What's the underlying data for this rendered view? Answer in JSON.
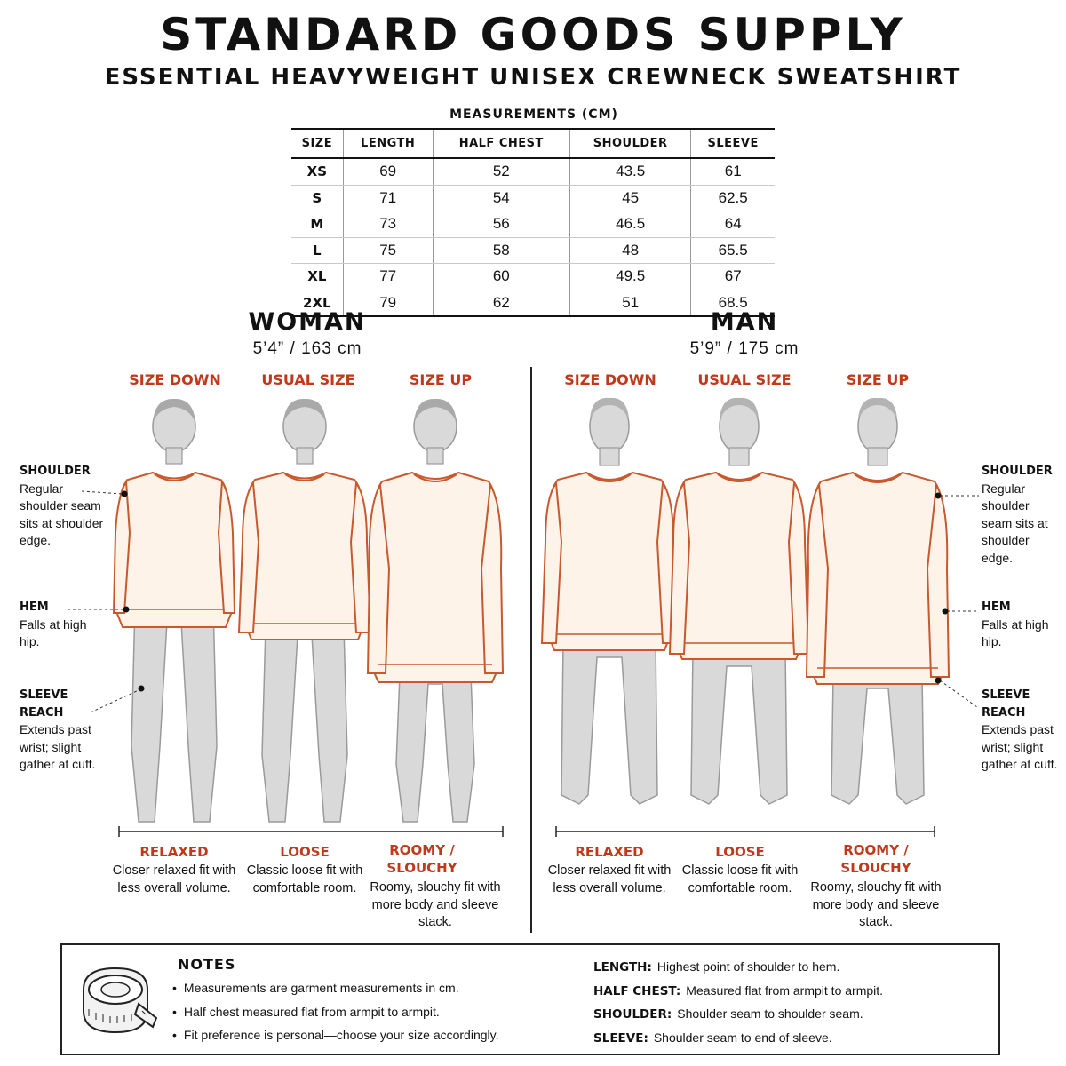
{
  "brand": "STANDARD GOODS SUPPLY",
  "product": "ESSENTIAL HEAVYWEIGHT UNISEX CREWNECK SWEATSHIRT",
  "table": {
    "caption": "MEASUREMENTS (CM)",
    "headers": [
      "SIZE",
      "LENGTH",
      "HALF CHEST",
      "SHOULDER",
      "SLEEVE"
    ],
    "rows": [
      [
        "XS",
        "69",
        "52",
        "43.5",
        "61"
      ],
      [
        "S",
        "71",
        "54",
        "45",
        "62.5"
      ],
      [
        "M",
        "73",
        "56",
        "46.5",
        "64"
      ],
      [
        "L",
        "75",
        "58",
        "48",
        "65.5"
      ],
      [
        "XL",
        "77",
        "60",
        "49.5",
        "67"
      ],
      [
        "2XL",
        "79",
        "62",
        "51",
        "68.5"
      ]
    ]
  },
  "groups": {
    "woman": {
      "title": "WOMAN",
      "height": "5’4” / 163 cm"
    },
    "man": {
      "title": "MAN",
      "height": "5’9” / 175 cm"
    }
  },
  "fit_labels": [
    "SIZE DOWN",
    "USUAL SIZE",
    "SIZE UP"
  ],
  "fits": [
    {
      "name": "RELAXED",
      "desc": "Closer relaxed fit with less overall volume."
    },
    {
      "name": "LOOSE",
      "desc": "Classic loose fit with comfortable room."
    },
    {
      "name": "ROOMY / SLOUCHY",
      "desc": "Roomy, slouchy fit with more body and sleeve stack."
    }
  ],
  "callouts": {
    "shoulder": {
      "title": "SHOULDER",
      "text": "Regular shoulder seam sits at shoulder edge."
    },
    "hem": {
      "title": "HEM",
      "text": "Falls at high hip."
    },
    "sleeve": {
      "title": "SLEEVE REACH",
      "text": "Extends past wrist; slight gather at cuff."
    }
  },
  "notes": {
    "title": "NOTES",
    "items": [
      "Measurements are garment measurements in cm.",
      "Half chest measured flat from armpit to armpit.",
      "Fit preference is personal—choose your size accordingly."
    ],
    "definitions": [
      {
        "term": "LENGTH:",
        "text": "Highest point of shoulder to hem."
      },
      {
        "term": "HALF CHEST:",
        "text": "Measured flat from armpit to armpit."
      },
      {
        "term": "SHOULDER:",
        "text": "Shoulder seam to shoulder seam."
      },
      {
        "term": "SLEEVE:",
        "text": "Shoulder seam to end of sleeve."
      }
    ]
  },
  "colors": {
    "accent": "#c0391b",
    "sweatshirt_fill": "#fdf3e8",
    "sweatshirt_stroke": "#c8582e",
    "figure_fill": "#d9d9d9",
    "figure_stroke": "#9a9a9a"
  },
  "icons": [
    "measuring-tape-icon"
  ]
}
